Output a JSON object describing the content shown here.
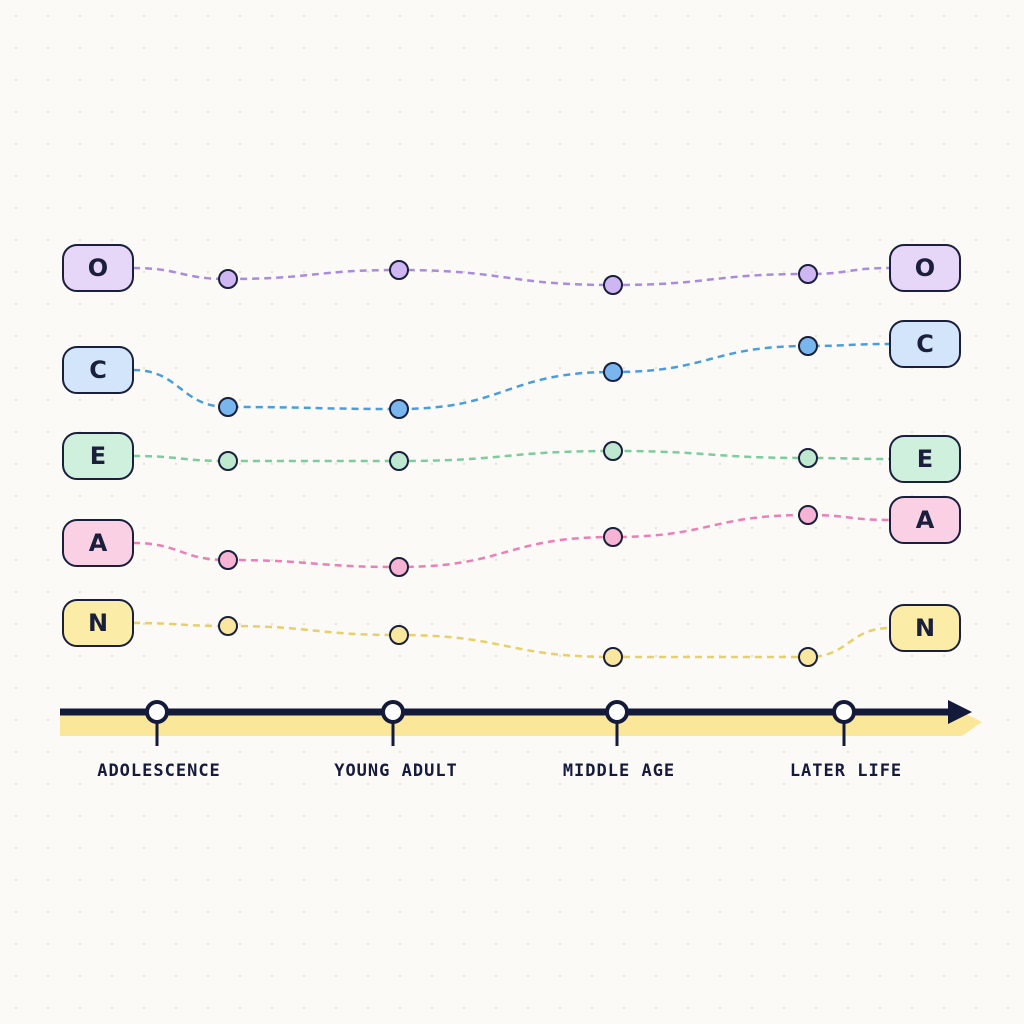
{
  "traits": [
    {
      "start_label": "O",
      "end_label": "O"
    },
    {
      "start_label": "C",
      "end_label": "C"
    },
    {
      "start_label": "E",
      "end_label": "E"
    },
    {
      "start_label": "A",
      "end_label": "A"
    },
    {
      "start_label": "N",
      "end_label": "N"
    }
  ],
  "stages": [
    "ADOLESCENCE",
    "YOUNG ADULT",
    "MIDDLE AGE",
    "LATER LIFE"
  ]
}
